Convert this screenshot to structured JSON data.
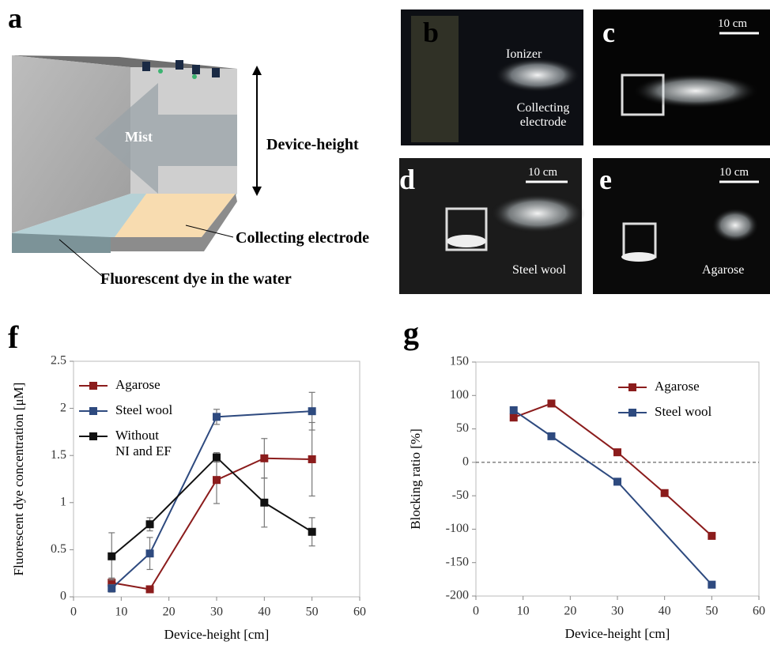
{
  "panel_labels": [
    "a",
    "b",
    "c",
    "d",
    "e",
    "f",
    "g"
  ],
  "diagram": {
    "mist": "Mist",
    "height": "Device-height",
    "electrode": "Collecting electrode",
    "dye": "Fluorescent dye in the water"
  },
  "photos": {
    "ionizer": "Ionizer",
    "collecting": "Collecting electrode",
    "scale_c": "10 cm",
    "scale_d": "10 cm",
    "scale_e": "10 cm",
    "steel_wool": "Steel wool",
    "agarose": "Agarose"
  },
  "chart_data": [
    {
      "type": "line",
      "x_label": "Device-height [cm]",
      "y_label": "Fluorescent dye concentration  [μM]",
      "xlim": [
        0,
        60
      ],
      "xticks": [
        0,
        10,
        20,
        30,
        40,
        50,
        60
      ],
      "ylim": [
        0,
        2.5
      ],
      "yticks": [
        0,
        0.5,
        1,
        1.5,
        2,
        2.5
      ],
      "legend": "upper left",
      "series": [
        {
          "name": "Agarose",
          "color": "#8b1c1c",
          "x": [
            8,
            16,
            30,
            40,
            50
          ],
          "values": [
            0.15,
            0.08,
            1.24,
            1.47,
            1.46
          ],
          "errors": [
            0.05,
            0.02,
            0.25,
            0.21,
            0.39
          ]
        },
        {
          "name": "Steel wool",
          "color": "#2e4a7f",
          "x": [
            8,
            16,
            30,
            50
          ],
          "values": [
            0.09,
            0.46,
            1.91,
            1.97
          ],
          "errors": [
            0.04,
            0.17,
            0.08,
            0.2
          ]
        },
        {
          "name": "Without NI and EF",
          "color": "#111111",
          "x": [
            8,
            16,
            30,
            40,
            50
          ],
          "values": [
            0.43,
            0.77,
            1.48,
            1.0,
            0.69
          ],
          "errors": [
            0.25,
            0.07,
            0.05,
            0.26,
            0.15
          ]
        }
      ]
    },
    {
      "type": "line",
      "x_label": "Device-height [cm]",
      "y_label": "Blocking ratio [%]",
      "xlim": [
        0,
        60
      ],
      "xticks": [
        0,
        10,
        20,
        30,
        40,
        50,
        60
      ],
      "ylim": [
        -200,
        150
      ],
      "yticks": [
        -200,
        -150,
        -100,
        -50,
        0,
        50,
        100,
        150
      ],
      "legend": "upper right",
      "reference_line": 0,
      "series": [
        {
          "name": "Agarose",
          "color": "#8b1c1c",
          "x": [
            8,
            16,
            30,
            40,
            50
          ],
          "values": [
            67,
            88,
            15,
            -46,
            -110
          ]
        },
        {
          "name": "Steel wool",
          "color": "#2e4a7f",
          "x": [
            8,
            16,
            30,
            50
          ],
          "values": [
            78,
            39,
            -29,
            -183
          ]
        }
      ]
    }
  ]
}
